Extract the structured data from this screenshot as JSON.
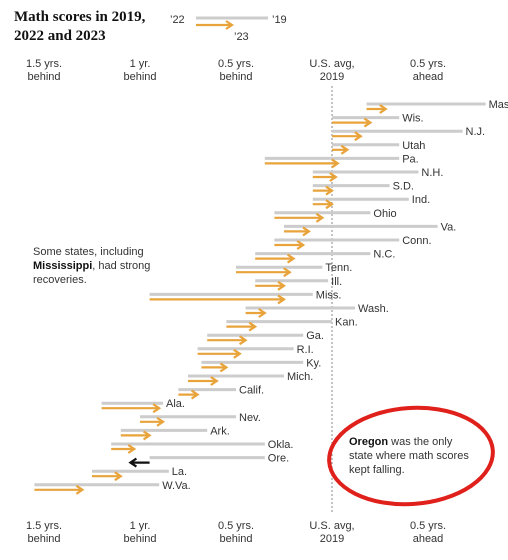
{
  "title": "Math scores in 2019, 2022 and 2023",
  "legend": {
    "label_2022": "’22",
    "label_2019": "’19",
    "label_2023": "’23"
  },
  "annotation_left": {
    "prefix": "Some states, including ",
    "bold": "Mississippi",
    "suffix": ", had strong recoveries."
  },
  "annotation_callout": {
    "bold": "Oregon",
    "text": " was the only state where math scores kept falling."
  },
  "colors": {
    "score_2019_line": "#cccccc",
    "change_arrow": "#e8a33a",
    "falling_arrow": "#111111",
    "callout_ring": "#e0201b",
    "reference_line": "#888888"
  },
  "chart_data": {
    "type": "arrow-range",
    "x_unit": "years of learning relative to U.S. average in 2019",
    "xlim": [
      -1.7,
      1.5
    ],
    "ticks": [
      {
        "value": -1.5,
        "line1": "1.5 yrs.",
        "line2": "behind"
      },
      {
        "value": -1.0,
        "line1": "1 yr.",
        "line2": "behind"
      },
      {
        "value": -0.5,
        "line1": "0.5 yrs.",
        "line2": "behind"
      },
      {
        "value": 0.0,
        "line1": "U.S. avg,",
        "line2": "2019"
      },
      {
        "value": 0.5,
        "line1": "0.5 yrs.",
        "line2": "ahead"
      }
    ],
    "states": [
      {
        "name": "Mass.",
        "y2019": 0.8,
        "y2022": 0.18,
        "y2023": 0.28
      },
      {
        "name": "Wis.",
        "y2019": 0.35,
        "y2022": 0.0,
        "y2023": 0.2
      },
      {
        "name": "N.J.",
        "y2019": 0.68,
        "y2022": 0.0,
        "y2023": 0.15
      },
      {
        "name": "Utah",
        "y2019": 0.35,
        "y2022": 0.0,
        "y2023": 0.08
      },
      {
        "name": "Pa.",
        "y2019": 0.35,
        "y2022": -0.35,
        "y2023": 0.03
      },
      {
        "name": "N.H.",
        "y2019": 0.45,
        "y2022": -0.1,
        "y2023": 0.02
      },
      {
        "name": "S.D.",
        "y2019": 0.3,
        "y2022": -0.1,
        "y2023": 0.0
      },
      {
        "name": "Ind.",
        "y2019": 0.4,
        "y2022": -0.1,
        "y2023": 0.0
      },
      {
        "name": "Ohio",
        "y2019": 0.2,
        "y2022": -0.3,
        "y2023": -0.05
      },
      {
        "name": "Va.",
        "y2019": 0.55,
        "y2022": -0.25,
        "y2023": -0.12
      },
      {
        "name": "Conn.",
        "y2019": 0.35,
        "y2022": -0.3,
        "y2023": -0.15
      },
      {
        "name": "N.C.",
        "y2019": 0.2,
        "y2022": -0.4,
        "y2023": -0.2
      },
      {
        "name": "Tenn.",
        "y2019": -0.05,
        "y2022": -0.5,
        "y2023": -0.22
      },
      {
        "name": "Ill.",
        "y2019": -0.02,
        "y2022": -0.4,
        "y2023": -0.25
      },
      {
        "name": "Miss.",
        "y2019": -0.1,
        "y2022": -0.95,
        "y2023": -0.25
      },
      {
        "name": "Wash.",
        "y2019": 0.12,
        "y2022": -0.45,
        "y2023": -0.35
      },
      {
        "name": "Kan.",
        "y2019": 0.0,
        "y2022": -0.55,
        "y2023": -0.4
      },
      {
        "name": "Ga.",
        "y2019": -0.15,
        "y2022": -0.65,
        "y2023": -0.45
      },
      {
        "name": "R.I.",
        "y2019": -0.2,
        "y2022": -0.7,
        "y2023": -0.48
      },
      {
        "name": "Ky.",
        "y2019": -0.15,
        "y2022": -0.68,
        "y2023": -0.55
      },
      {
        "name": "Mich.",
        "y2019": -0.25,
        "y2022": -0.75,
        "y2023": -0.6
      },
      {
        "name": "Calif.",
        "y2019": -0.5,
        "y2022": -0.8,
        "y2023": -0.7
      },
      {
        "name": "Ala.",
        "y2019": -0.88,
        "y2022": -1.2,
        "y2023": -0.9
      },
      {
        "name": "Nev.",
        "y2019": -0.5,
        "y2022": -1.0,
        "y2023": -0.88
      },
      {
        "name": "Ark.",
        "y2019": -0.65,
        "y2022": -1.1,
        "y2023": -0.95
      },
      {
        "name": "Okla.",
        "y2019": -0.35,
        "y2022": -1.15,
        "y2023": -1.03
      },
      {
        "name": "Ore.",
        "y2019": -0.35,
        "y2022": -0.95,
        "y2023": -1.05
      },
      {
        "name": "La.",
        "y2019": -0.85,
        "y2022": -1.25,
        "y2023": -1.1
      },
      {
        "name": "W.Va.",
        "y2019": -0.9,
        "y2022": -1.55,
        "y2023": -1.3
      }
    ]
  }
}
